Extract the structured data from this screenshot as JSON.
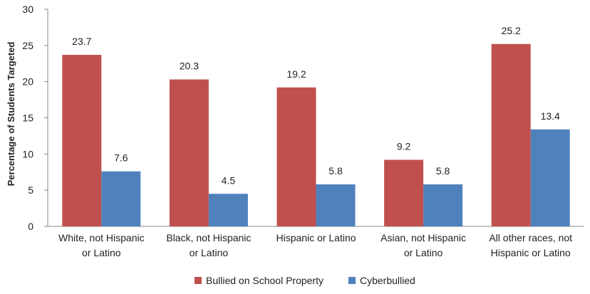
{
  "chart_data": {
    "type": "bar",
    "title": "",
    "xlabel": "",
    "ylabel": "Percentage of Students Targeted",
    "ylim": [
      0,
      30
    ],
    "yticks": [
      0,
      5,
      10,
      15,
      20,
      25,
      30
    ],
    "grid": false,
    "legend_position": "bottom",
    "categories": [
      [
        "White, not Hispanic",
        "or Latino"
      ],
      [
        "Black, not Hispanic",
        "or Latino"
      ],
      [
        "Hispanic or Latino"
      ],
      [
        "Asian, not Hispanic",
        "or Latino"
      ],
      [
        "All other races, not",
        "Hispanic or Latino"
      ]
    ],
    "series": [
      {
        "name": "Bullied on School Property",
        "color": "#C0504D",
        "values": [
          23.7,
          20.3,
          19.2,
          9.2,
          25.2
        ]
      },
      {
        "name": "Cyberbullied",
        "color": "#4F81BD",
        "values": [
          7.6,
          4.5,
          5.8,
          5.8,
          13.4
        ]
      }
    ]
  }
}
